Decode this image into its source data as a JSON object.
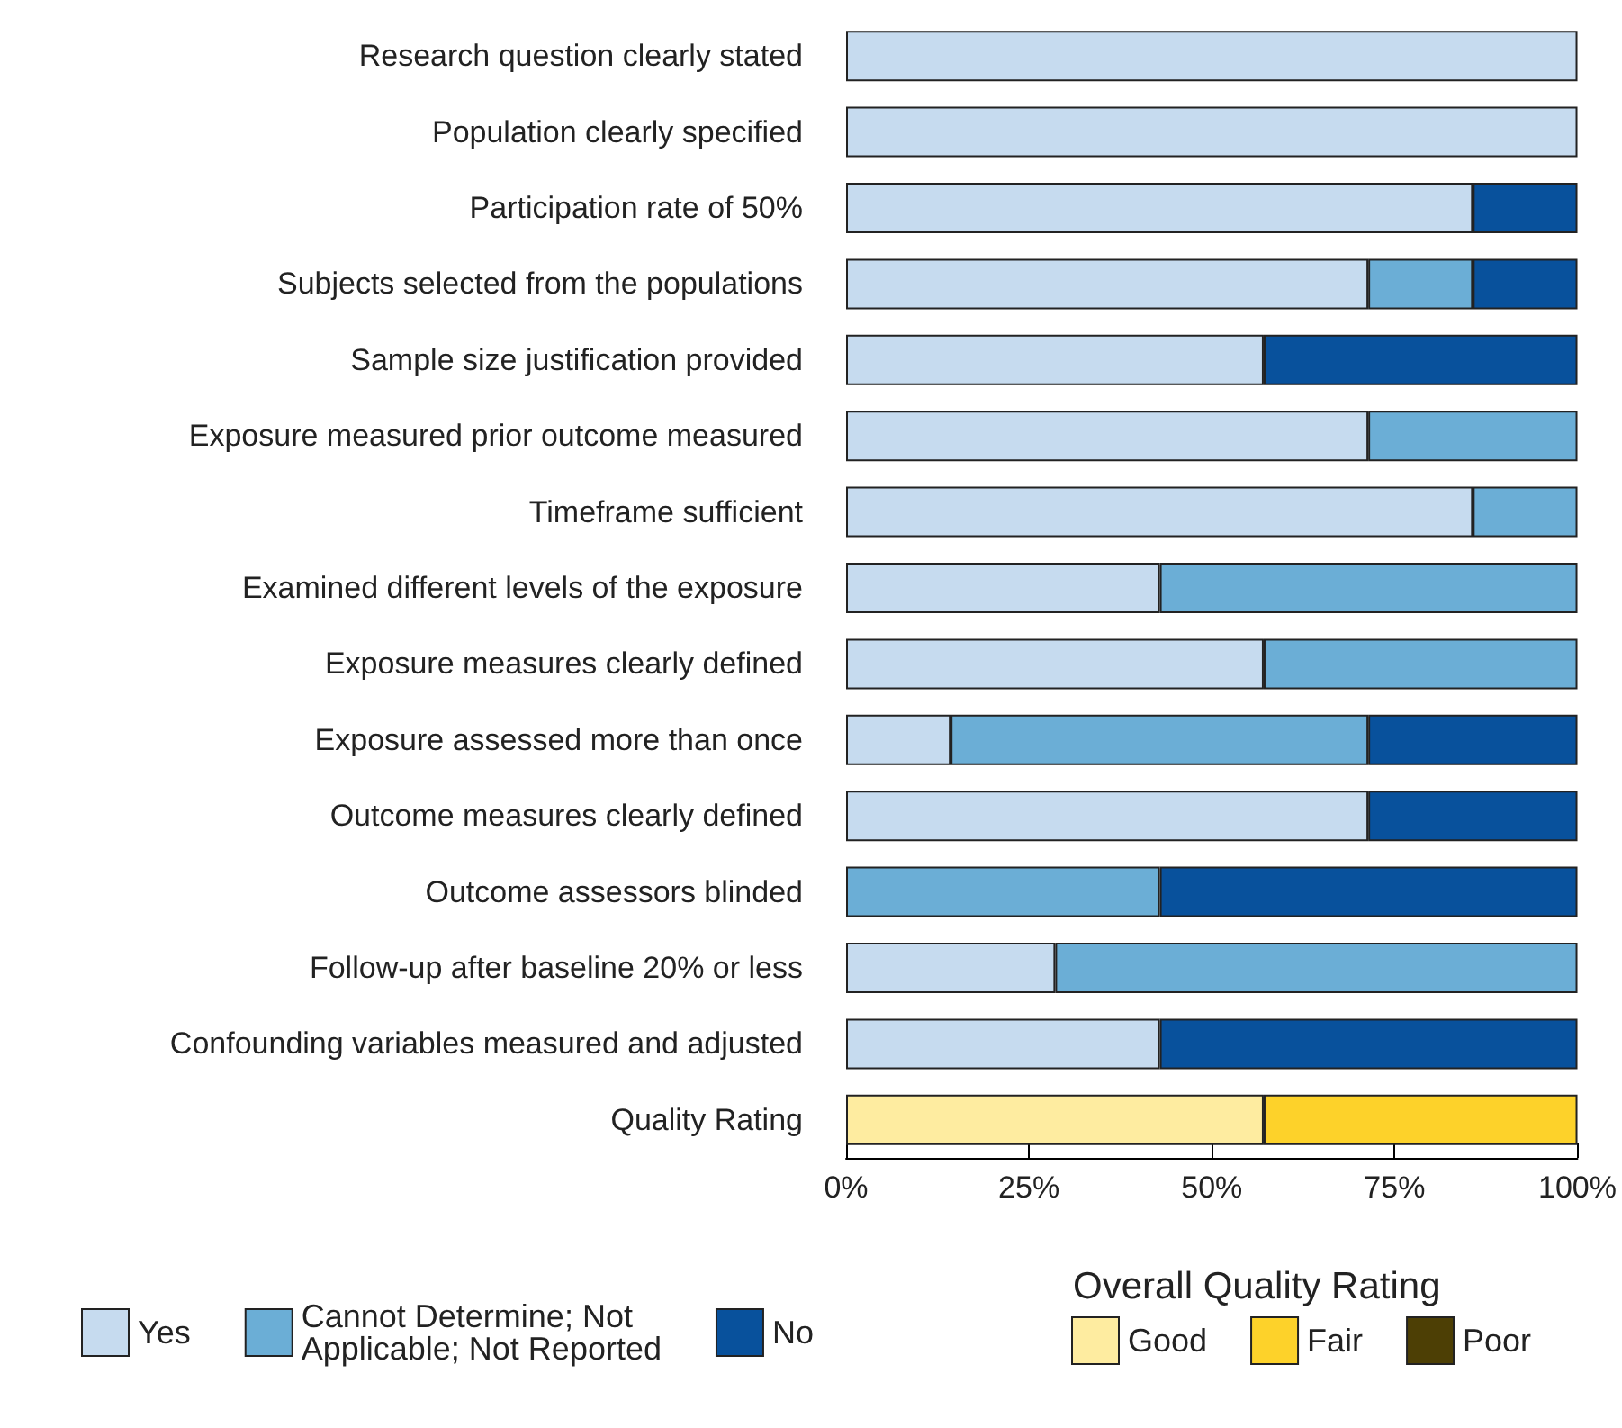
{
  "chart_data": {
    "type": "bar",
    "orientation": "horizontal",
    "stacked": true,
    "categories": [
      "Research question clearly stated",
      "Population clearly specified",
      "Participation rate of 50%",
      "Subjects selected from the populations",
      "Sample size justification provided",
      "Exposure measured prior outcome measured",
      "Timeframe sufficient",
      "Examined different levels of the exposure",
      "Exposure measures clearly defined",
      "Exposure assessed more than once",
      "Outcome measures clearly defined",
      "Outcome assessors blinded",
      "Follow-up after baseline 20% or less",
      "Confounding variables measured and adjusted",
      "Quality Rating"
    ],
    "series": [
      {
        "name": "Yes",
        "color": "#c6dbef",
        "values": [
          100,
          100,
          85.7,
          71.4,
          57.1,
          71.4,
          85.7,
          42.9,
          57.1,
          14.3,
          71.4,
          0,
          28.6,
          42.9,
          null
        ]
      },
      {
        "name": "Cannot Determine; Not Applicable; Not Reported",
        "color": "#6baed6",
        "values": [
          0,
          0,
          0,
          14.3,
          0,
          28.6,
          14.3,
          57.1,
          42.9,
          57.1,
          0,
          42.9,
          71.4,
          0,
          null
        ]
      },
      {
        "name": "No",
        "color": "#08519c",
        "values": [
          0,
          0,
          14.3,
          14.3,
          42.9,
          0,
          0,
          0,
          0,
          28.6,
          28.6,
          57.1,
          0,
          57.1,
          null
        ]
      },
      {
        "name": "Good",
        "color": "#feeca0",
        "values": [
          null,
          null,
          null,
          null,
          null,
          null,
          null,
          null,
          null,
          null,
          null,
          null,
          null,
          null,
          57.1
        ]
      },
      {
        "name": "Fair",
        "color": "#fdd22a",
        "values": [
          null,
          null,
          null,
          null,
          null,
          null,
          null,
          null,
          null,
          null,
          null,
          null,
          null,
          null,
          42.9
        ]
      },
      {
        "name": "Poor",
        "color": "#4d3f05",
        "values": [
          null,
          null,
          null,
          null,
          null,
          null,
          null,
          null,
          null,
          null,
          null,
          null,
          null,
          null,
          0
        ]
      }
    ],
    "xlim": [
      0,
      100
    ],
    "xticks": [
      {
        "value": 0,
        "label": "0%"
      },
      {
        "value": 25,
        "label": "25%"
      },
      {
        "value": 50,
        "label": "50%"
      },
      {
        "value": 75,
        "label": "75%"
      },
      {
        "value": 100,
        "label": "100%"
      }
    ],
    "legend": "bottom",
    "legend_title": "Overall Quality Rating",
    "grid": false
  }
}
